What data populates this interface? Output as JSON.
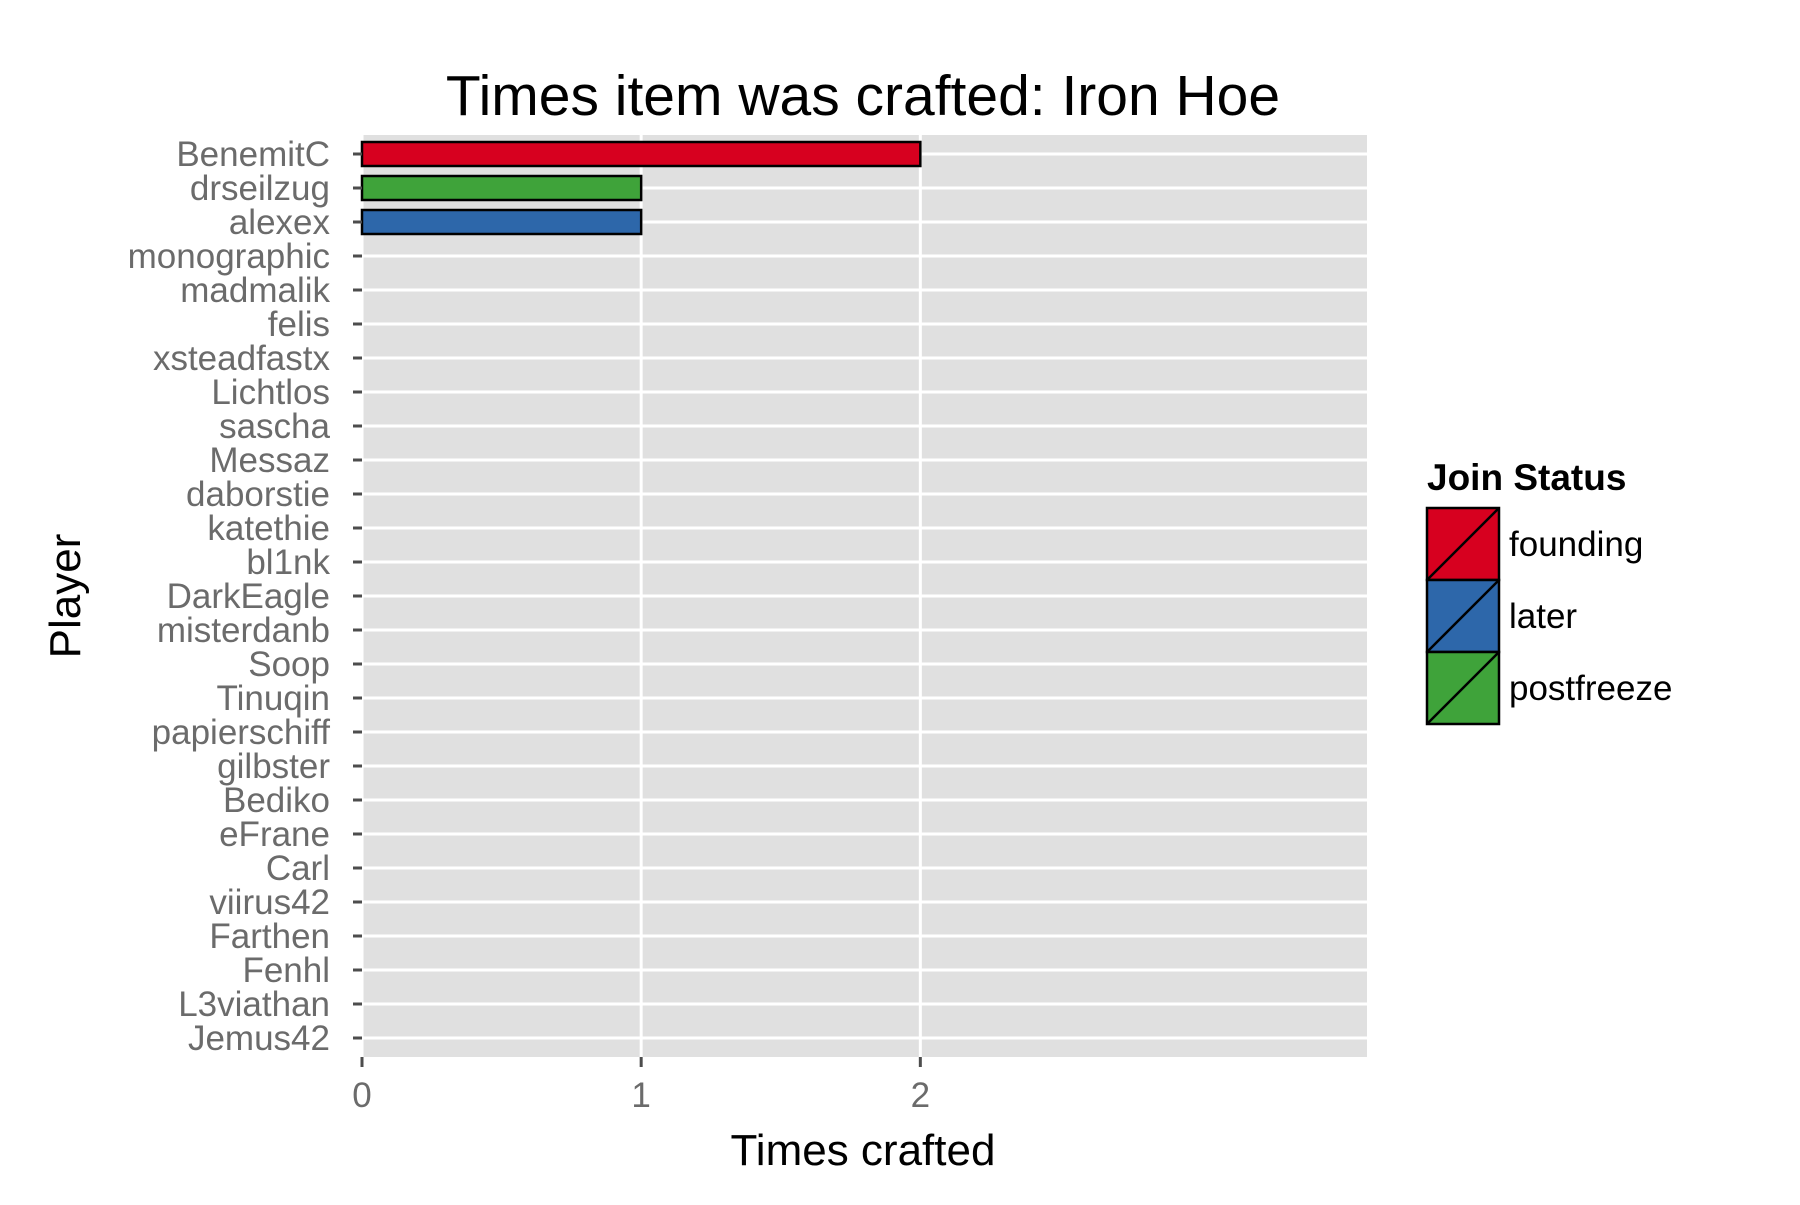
{
  "chart_data": {
    "type": "bar",
    "orientation": "horizontal",
    "title": "Times item was crafted: Iron Hoe",
    "xlabel": "Times crafted",
    "ylabel": "Player",
    "xlim": [
      0,
      3.6
    ],
    "xticks": [
      0,
      1,
      2
    ],
    "grid": true,
    "legend": {
      "title": "Join Status",
      "position": "right",
      "entries": [
        {
          "name": "founding",
          "color": "#d7001f"
        },
        {
          "name": "later",
          "color": "#2d67aa"
        },
        {
          "name": "postfreeze",
          "color": "#3fa33a"
        }
      ]
    },
    "bars": [
      {
        "player": "BenemitC",
        "value": 2,
        "status": "founding"
      },
      {
        "player": "drseilzug",
        "value": 1,
        "status": "postfreeze"
      },
      {
        "player": "alexex",
        "value": 1,
        "status": "later"
      },
      {
        "player": "monographic",
        "value": 0,
        "status": ""
      },
      {
        "player": "madmalik",
        "value": 0,
        "status": ""
      },
      {
        "player": "felis",
        "value": 0,
        "status": ""
      },
      {
        "player": "xsteadfastx",
        "value": 0,
        "status": ""
      },
      {
        "player": "Lichtlos",
        "value": 0,
        "status": ""
      },
      {
        "player": "sascha",
        "value": 0,
        "status": ""
      },
      {
        "player": "Messaz",
        "value": 0,
        "status": ""
      },
      {
        "player": "daborstie",
        "value": 0,
        "status": ""
      },
      {
        "player": "katethie",
        "value": 0,
        "status": ""
      },
      {
        "player": "bl1nk",
        "value": 0,
        "status": ""
      },
      {
        "player": "DarkEagle",
        "value": 0,
        "status": ""
      },
      {
        "player": "misterdanb",
        "value": 0,
        "status": ""
      },
      {
        "player": "Soop",
        "value": 0,
        "status": ""
      },
      {
        "player": "Tinuqin",
        "value": 0,
        "status": ""
      },
      {
        "player": "papierschiff",
        "value": 0,
        "status": ""
      },
      {
        "player": "gilbster",
        "value": 0,
        "status": ""
      },
      {
        "player": "Bediko",
        "value": 0,
        "status": ""
      },
      {
        "player": "eFrane",
        "value": 0,
        "status": ""
      },
      {
        "player": "Carl",
        "value": 0,
        "status": ""
      },
      {
        "player": "viirus42",
        "value": 0,
        "status": ""
      },
      {
        "player": "Farthen",
        "value": 0,
        "status": ""
      },
      {
        "player": "Fenhl",
        "value": 0,
        "status": ""
      },
      {
        "player": "L3viathan",
        "value": 0,
        "status": ""
      },
      {
        "player": "Jemus42",
        "value": 0,
        "status": ""
      }
    ]
  }
}
